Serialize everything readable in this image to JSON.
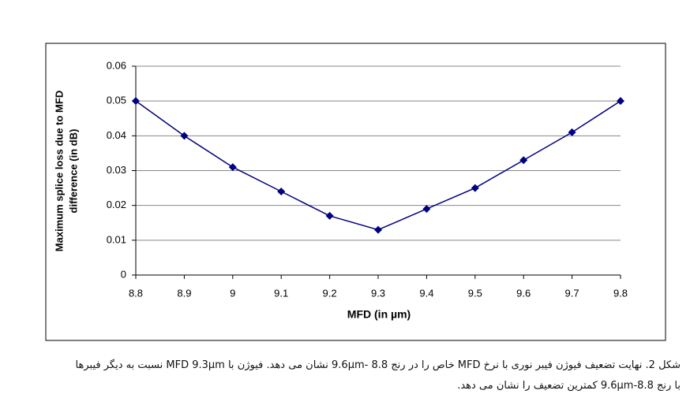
{
  "chart_data": {
    "type": "line",
    "xlabel": "MFD (in µm)",
    "ylabel": [
      "Maximum splice loss due to MFD",
      "difference (in dB)"
    ],
    "x": [
      8.8,
      8.9,
      9.0,
      9.1,
      9.2,
      9.3,
      9.4,
      9.5,
      9.6,
      9.7,
      9.8
    ],
    "series": [
      {
        "color": "#000080",
        "values": [
          0.05,
          0.04,
          0.031,
          0.024,
          0.017,
          0.013,
          0.019,
          0.025,
          0.033,
          0.041,
          0.05
        ]
      }
    ],
    "xlim": [
      8.8,
      9.8
    ],
    "xticks": [
      8.8,
      8.9,
      9,
      9.1,
      9.2,
      9.3,
      9.4,
      9.5,
      9.6,
      9.7,
      9.8
    ],
    "ylim": [
      0,
      0.06
    ],
    "yticks": [
      0,
      0.01,
      0.02,
      0.03,
      0.04,
      0.05,
      0.06
    ],
    "grid": true
  },
  "caption": [
    "شکل 2. نهایت تضعیف فیوژن فیبر نوری با نرخ MFD خاص را در رنج 8.8 -9.6µm نشان می دهد. فیوژن با MFD 9.3µm نسبت به دیگر فیبرها",
    "با رنج 8.8-9.6µm کمترین تضعیف را نشان می دهد."
  ]
}
